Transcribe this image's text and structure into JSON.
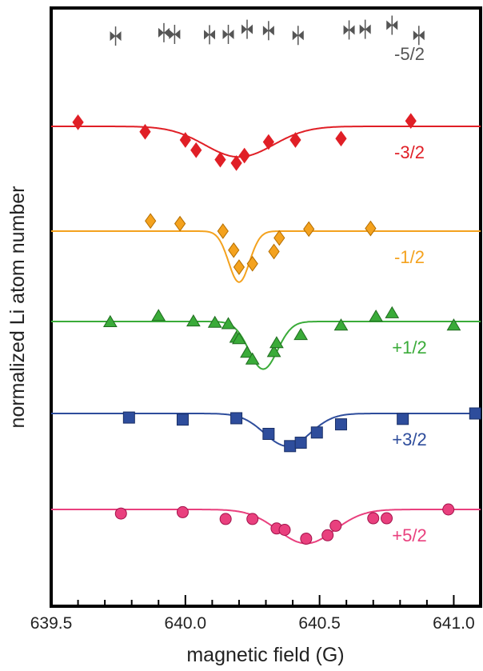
{
  "chart_data": {
    "type": "scatter",
    "xlabel": "magnetic field (G)",
    "ylabel": "normalized Li atom number",
    "xlim": [
      639.5,
      641.1
    ],
    "x_ticks": [
      "639.5",
      "640.0",
      "640.5",
      "641.0"
    ],
    "grid": false,
    "legend": "none",
    "series": [
      {
        "name": "-5/2",
        "color": "#555555",
        "marker": "bowtie",
        "baseline": 0.0,
        "fit": null,
        "points": [
          [
            639.74,
            -0.6
          ],
          [
            639.92,
            -0.1
          ],
          [
            639.96,
            -0.35
          ],
          [
            640.09,
            -0.4
          ],
          [
            640.16,
            -0.35
          ],
          [
            640.23,
            0.4
          ],
          [
            640.31,
            0.2
          ],
          [
            640.42,
            -0.5
          ],
          [
            640.61,
            0.3
          ],
          [
            640.67,
            0.4
          ],
          [
            640.77,
            1.0
          ],
          [
            640.87,
            -0.5
          ]
        ]
      },
      {
        "name": "-3/2",
        "color": "#e01f26",
        "marker": "diamond",
        "baseline": 0.0,
        "fit": {
          "center": 640.2,
          "width": 0.18,
          "depth": 4.5
        },
        "points": [
          [
            639.6,
            0.6
          ],
          [
            639.85,
            -0.8
          ],
          [
            640.0,
            -2.0
          ],
          [
            640.04,
            -3.5
          ],
          [
            640.13,
            -4.9
          ],
          [
            640.19,
            -5.4
          ],
          [
            640.22,
            -4.3
          ],
          [
            640.31,
            -2.3
          ],
          [
            640.41,
            -2.0
          ],
          [
            640.58,
            -1.8
          ],
          [
            640.84,
            0.8
          ]
        ]
      },
      {
        "name": "-1/2",
        "color": "#f4a21e",
        "marker": "diamond",
        "baseline": 0.0,
        "fit": {
          "center": 640.2,
          "width": 0.055,
          "depth": 7.5
        },
        "points": [
          [
            639.87,
            1.5
          ],
          [
            639.98,
            1.1
          ],
          [
            640.14,
            0.0
          ],
          [
            640.18,
            -2.8
          ],
          [
            640.2,
            -5.3
          ],
          [
            640.25,
            -4.8
          ],
          [
            640.33,
            -3.0
          ],
          [
            640.35,
            -1.0
          ],
          [
            640.46,
            0.3
          ],
          [
            640.69,
            0.4
          ]
        ]
      },
      {
        "name": "+1/2",
        "color": "#3aab39",
        "marker": "triangle",
        "baseline": 0.0,
        "fit": {
          "center": 640.29,
          "width": 0.075,
          "depth": 7.0
        },
        "points": [
          [
            639.72,
            -0.1
          ],
          [
            639.9,
            0.8
          ],
          [
            640.03,
            0.0
          ],
          [
            640.11,
            -0.2
          ],
          [
            640.16,
            -0.4
          ],
          [
            640.19,
            -2.4
          ],
          [
            640.2,
            -2.6
          ],
          [
            640.23,
            -4.6
          ],
          [
            640.25,
            -5.6
          ],
          [
            640.33,
            -4.5
          ],
          [
            640.34,
            -3.2
          ],
          [
            640.43,
            -2.0
          ],
          [
            640.58,
            -0.6
          ],
          [
            640.71,
            0.7
          ],
          [
            640.77,
            1.2
          ],
          [
            641.0,
            -0.6
          ]
        ]
      },
      {
        "name": "+3/2",
        "color": "#2e4d9c",
        "marker": "square",
        "baseline": 0.0,
        "fit": {
          "center": 640.38,
          "width": 0.12,
          "depth": 4.8
        },
        "points": [
          [
            639.79,
            -0.6
          ],
          [
            639.99,
            -0.9
          ],
          [
            640.19,
            -0.7
          ],
          [
            640.31,
            -3.0
          ],
          [
            640.39,
            -4.8
          ],
          [
            640.43,
            -4.3
          ],
          [
            640.49,
            -2.8
          ],
          [
            640.58,
            -1.6
          ],
          [
            640.81,
            -0.8
          ],
          [
            641.08,
            0.0
          ]
        ]
      },
      {
        "name": "+5/2",
        "color": "#e9407e",
        "marker": "circle",
        "baseline": 0.0,
        "fit": {
          "center": 640.45,
          "width": 0.15,
          "depth": 5.0
        },
        "points": [
          [
            639.76,
            -0.6
          ],
          [
            639.99,
            -0.4
          ],
          [
            640.15,
            -1.4
          ],
          [
            640.25,
            -1.4
          ],
          [
            640.34,
            -2.8
          ],
          [
            640.37,
            -3.0
          ],
          [
            640.45,
            -4.3
          ],
          [
            640.53,
            -3.8
          ],
          [
            640.56,
            -2.4
          ],
          [
            640.7,
            -1.3
          ],
          [
            640.75,
            -1.3
          ],
          [
            640.98,
            0.0
          ]
        ]
      }
    ]
  }
}
